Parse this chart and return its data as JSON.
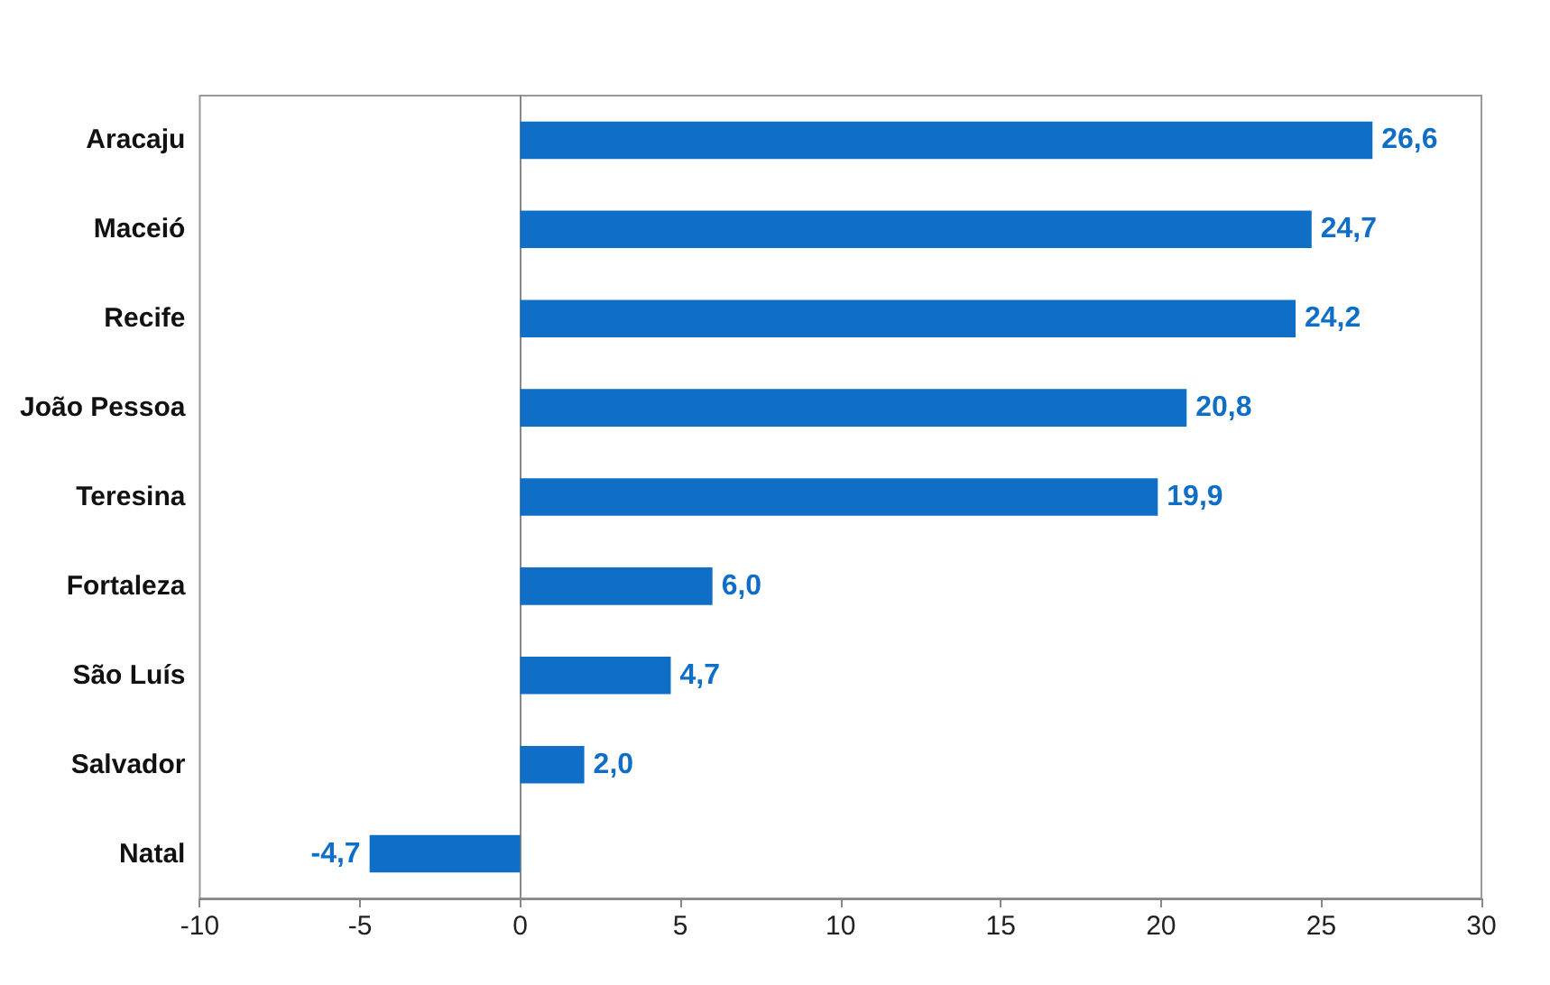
{
  "chart_data": {
    "type": "bar",
    "orientation": "horizontal",
    "categories": [
      "Aracaju",
      "Maceió",
      "Recife",
      "João Pessoa",
      "Teresina",
      "Fortaleza",
      "São Luís",
      "Salvador",
      "Natal"
    ],
    "values": [
      26.6,
      24.7,
      24.2,
      20.8,
      19.9,
      6.0,
      4.7,
      2.0,
      -4.7
    ],
    "value_labels": [
      "26,6",
      "24,7",
      "24,2",
      "20,8",
      "19,9",
      "6,0",
      "4,7",
      "2,0",
      "-4,7"
    ],
    "color": "#0f6fc6",
    "xlim": [
      -10,
      30
    ],
    "xticks": [
      -10,
      -5,
      0,
      5,
      10,
      15,
      20,
      25,
      30
    ]
  }
}
